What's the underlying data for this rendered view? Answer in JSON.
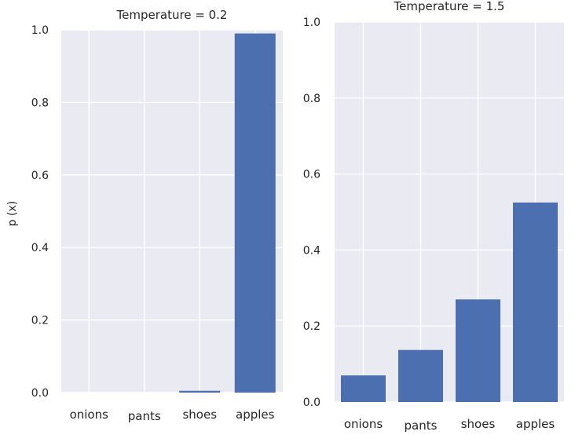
{
  "figure": {
    "ylabel": "p (x)"
  },
  "chart_data": [
    {
      "type": "bar",
      "title": "Temperature = 0.2",
      "categories": [
        "onions",
        "pants",
        "shoes",
        "apples"
      ],
      "values": [
        0.0,
        0.0,
        0.005,
        0.99
      ],
      "xlabel": "",
      "ylabel": "p (x)",
      "ylim": [
        0,
        1.0
      ],
      "yticks": [
        "0.0",
        "0.2",
        "0.4",
        "0.6",
        "0.8",
        "1.0"
      ],
      "grid": true,
      "bar_color": "#4c6faf",
      "background_color": "#eaeaf2"
    },
    {
      "type": "bar",
      "title": "Temperature = 1.5",
      "categories": [
        "onions",
        "pants",
        "shoes",
        "apples"
      ],
      "values": [
        0.07,
        0.137,
        0.27,
        0.525
      ],
      "xlabel": "",
      "ylabel": "",
      "ylim": [
        0,
        1.0
      ],
      "yticks": [
        "0.0",
        "0.2",
        "0.4",
        "0.6",
        "0.8",
        "1.0"
      ],
      "grid": true,
      "bar_color": "#4c6faf",
      "background_color": "#eaeaf2"
    }
  ]
}
